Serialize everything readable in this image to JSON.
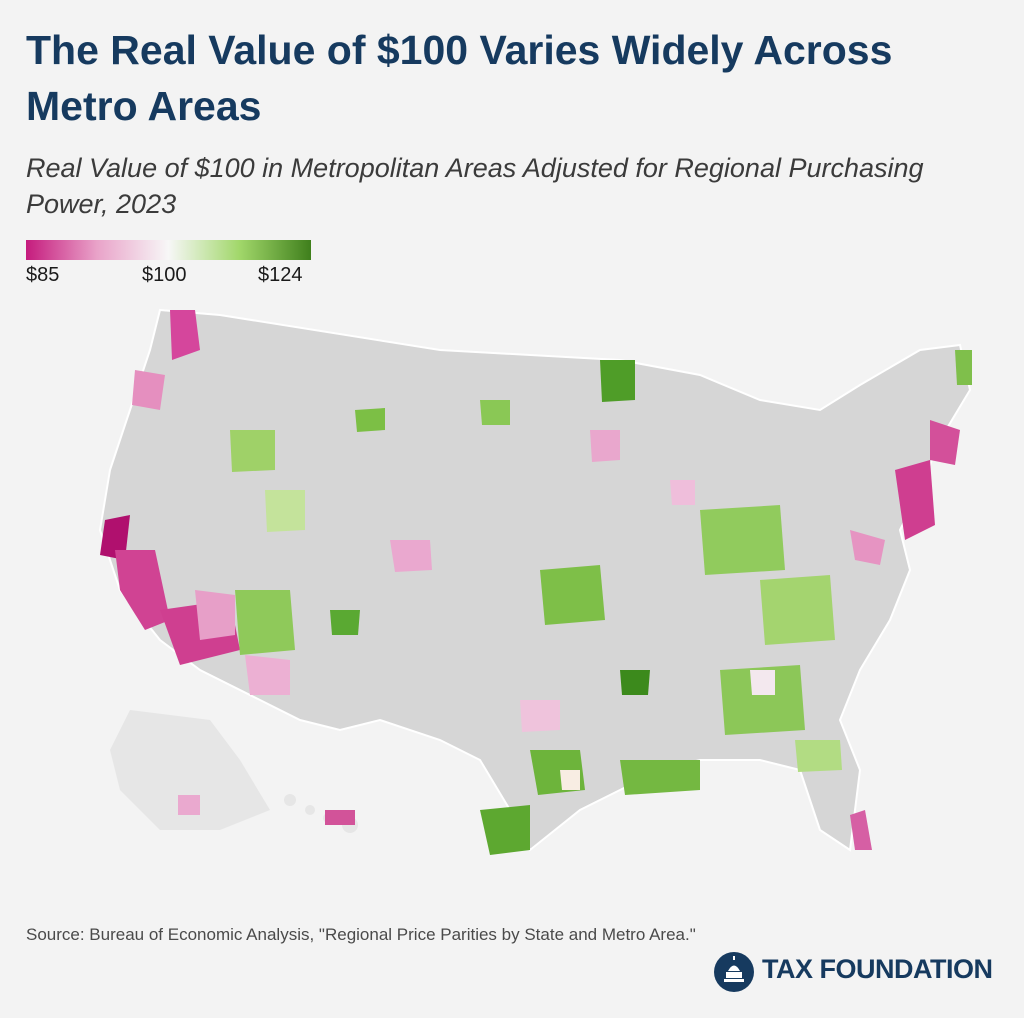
{
  "title": "The Real Value of $100 Varies Widely Across Metro Areas",
  "subtitle": "Real Value of $100 in Metropolitan Areas Adjusted for Regional Purchasing Power, 2023",
  "legend": {
    "min_label": "$85",
    "mid_label": "$100",
    "max_label": "$124",
    "min_value": 85,
    "mid_value": 100,
    "max_value": 124,
    "colors": {
      "low": "#c51b7d",
      "low_mid": "#e9a3c9",
      "mid": "#f7f7f7",
      "high_mid": "#a1d76a",
      "high": "#4d9221",
      "nonmetro": "#d3d3d3",
      "background": "#f3f3f3"
    }
  },
  "source": "Source: Bureau of Economic Analysis, \"Regional Price Parities by State and Metro Area.\"",
  "brand": {
    "name": "TAX FOUNDATION",
    "icon": "capitol-dome-icon",
    "color": "#163a5f"
  }
}
